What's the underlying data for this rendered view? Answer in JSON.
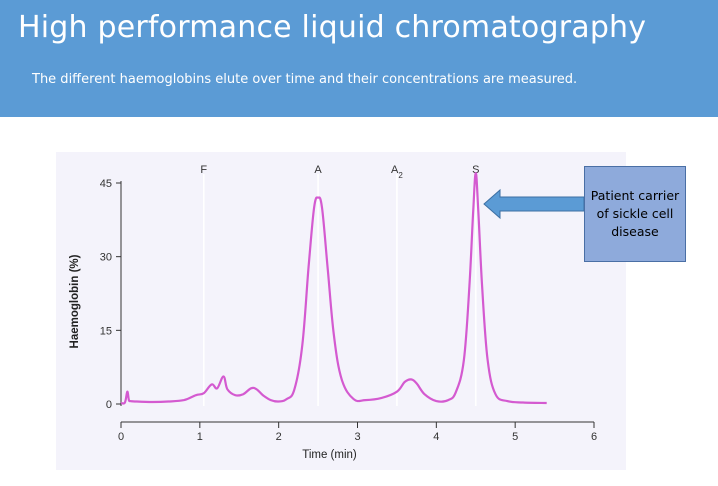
{
  "slide": {
    "title": "High performance liquid chromatography",
    "subtitle": "The different haemoglobins elute over time and their concentrations are measured."
  },
  "callout": {
    "text": "Patient carrier of sickle cell disease"
  },
  "colors": {
    "header": "#5b9bd5",
    "trace": "#d45ad0",
    "callout": "#8eaadb",
    "arrow": "#5b9bd5"
  },
  "chart_data": {
    "type": "line",
    "xlabel": "Time (min)",
    "ylabel": "Haemoglobin (%)",
    "xlim": [
      0,
      6
    ],
    "ylim": [
      0,
      45
    ],
    "xticks": [
      0,
      1,
      2,
      3,
      4,
      5,
      6
    ],
    "yticks": [
      0,
      15,
      30,
      45
    ],
    "peak_labels": [
      {
        "label": "F",
        "x": 1.05
      },
      {
        "label": "A",
        "x": 2.5
      },
      {
        "label": "A2",
        "x": 3.5
      },
      {
        "label": "S",
        "x": 4.5
      }
    ],
    "grid": "vertical at peak labels",
    "series": [
      {
        "x": [
          0.0,
          0.05,
          0.08,
          0.1,
          0.12,
          0.2,
          0.4,
          0.6,
          0.8,
          0.95,
          1.05,
          1.15,
          1.22,
          1.3,
          1.35,
          1.45,
          1.55,
          1.65,
          1.72,
          1.8,
          1.9,
          2.0,
          2.1,
          2.2,
          2.3,
          2.38,
          2.45,
          2.5,
          2.55,
          2.62,
          2.7,
          2.8,
          2.95,
          3.1,
          3.3,
          3.5,
          3.6,
          3.68,
          3.75,
          3.85,
          4.0,
          4.15,
          4.25,
          4.35,
          4.42,
          4.47,
          4.5,
          4.53,
          4.58,
          4.65,
          4.75,
          4.9,
          5.1,
          5.4
        ],
        "y": [
          0.2,
          0.3,
          2.5,
          0.8,
          0.6,
          0.5,
          0.4,
          0.5,
          0.8,
          1.8,
          2.2,
          4.0,
          3.2,
          5.6,
          3.0,
          1.8,
          2.0,
          3.2,
          3.0,
          1.8,
          0.8,
          0.5,
          1.0,
          3.0,
          12.0,
          28.0,
          40.0,
          42.0,
          40.0,
          28.0,
          14.0,
          5.0,
          1.0,
          0.8,
          1.2,
          2.5,
          4.5,
          5.0,
          4.2,
          2.0,
          0.6,
          0.8,
          2.5,
          9.0,
          24.0,
          40.0,
          47.0,
          40.0,
          24.0,
          9.0,
          2.0,
          0.6,
          0.3,
          0.2
        ]
      }
    ]
  }
}
